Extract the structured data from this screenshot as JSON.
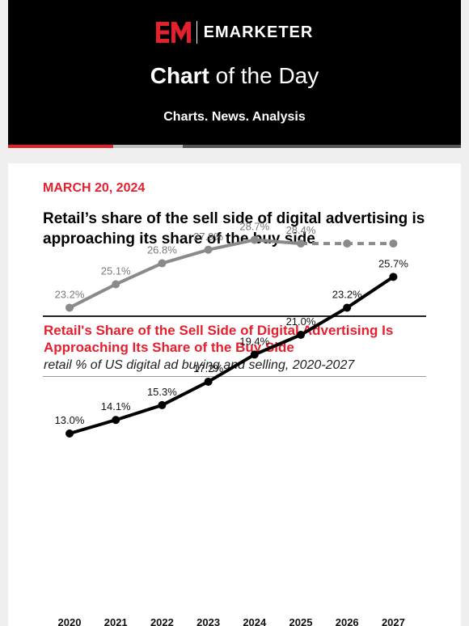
{
  "header": {
    "brand_mark": "EM",
    "brand": "EMARKETER",
    "title_bold": "Chart",
    "title_rest": "of the Day",
    "tagline": "Charts. News. Analysis",
    "colors": {
      "accent": "#e4202e",
      "background": "#000000"
    }
  },
  "article": {
    "date": "MARCH 20, 2024",
    "headline": "Retail’s share of the sell side of digital advertising is approaching its share of the buy side"
  },
  "chart_data": {
    "type": "line",
    "title": "Retail's Share of the Sell Side of Digital Advertising Is Approaching Its Share of the Buy Side",
    "subtitle": "retail % of US digital ad buying and selling, 2020-2027",
    "categories": [
      "2020",
      "2021",
      "2022",
      "2023",
      "2024",
      "2025",
      "2026",
      "2027"
    ],
    "series": [
      {
        "color": "#8a8a8a",
        "values": [
          23.2,
          25.1,
          26.8,
          27.9,
          28.7,
          28.4,
          28.4,
          28.4
        ],
        "labels": [
          "23.2%",
          "25.1%",
          "26.8%",
          "27.9%",
          "28.7%",
          "28.4%",
          "",
          ""
        ],
        "dashed_from_index": 5
      },
      {
        "color": "#000000",
        "values": [
          13.0,
          14.1,
          15.3,
          17.2,
          19.4,
          21.0,
          23.2,
          25.7
        ],
        "labels": [
          "13.0%",
          "14.1%",
          "15.3%",
          "17.2%",
          "19.4%",
          "21.0%",
          "23.2%",
          "25.7%"
        ]
      }
    ],
    "grid": false,
    "legend": "none"
  }
}
